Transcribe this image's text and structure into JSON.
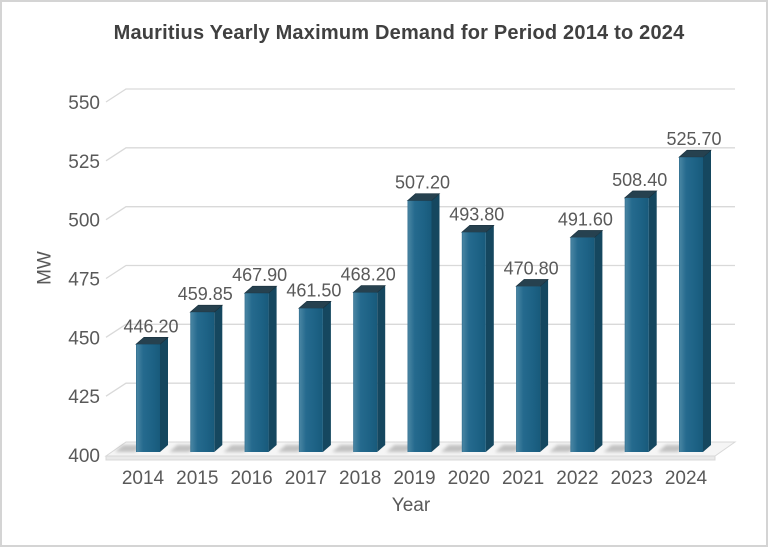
{
  "page": {
    "background": "#ffffff",
    "border_color": "#d4d4d4"
  },
  "chart_data": {
    "type": "bar",
    "style": "3d-column",
    "title": "Mauritius Yearly Maximum Demand for Period 2014 to 2024",
    "xlabel": "Year",
    "ylabel": "MW",
    "categories": [
      "2014",
      "2015",
      "2016",
      "2017",
      "2018",
      "2019",
      "2020",
      "2021",
      "2022",
      "2023",
      "2024"
    ],
    "values": [
      446.2,
      459.85,
      467.9,
      461.5,
      468.2,
      507.2,
      493.8,
      470.8,
      491.6,
      508.4,
      525.7
    ],
    "data_labels_visible": true,
    "data_label_decimals": 2,
    "ylim": [
      400,
      550
    ],
    "yticks": [
      400,
      425,
      450,
      475,
      500,
      525,
      550
    ],
    "grid": true,
    "legend": "none",
    "colors": {
      "bar_front": "#1d6285",
      "bar_front_highlight": "#4683a1",
      "bar_front_dark": "#185a7b",
      "bar_side": "#15475f",
      "bar_top": "#26414f",
      "bar_top_edge": "#18303d",
      "gridline": "#d9d9d9",
      "floor_top": "#f5f5f5",
      "floor_skirt": "#e9e9e9",
      "floor_edge": "#d8d8d8",
      "shadow": "#8d8d8d",
      "label_text": "#595959",
      "title_text": "#404040"
    }
  }
}
